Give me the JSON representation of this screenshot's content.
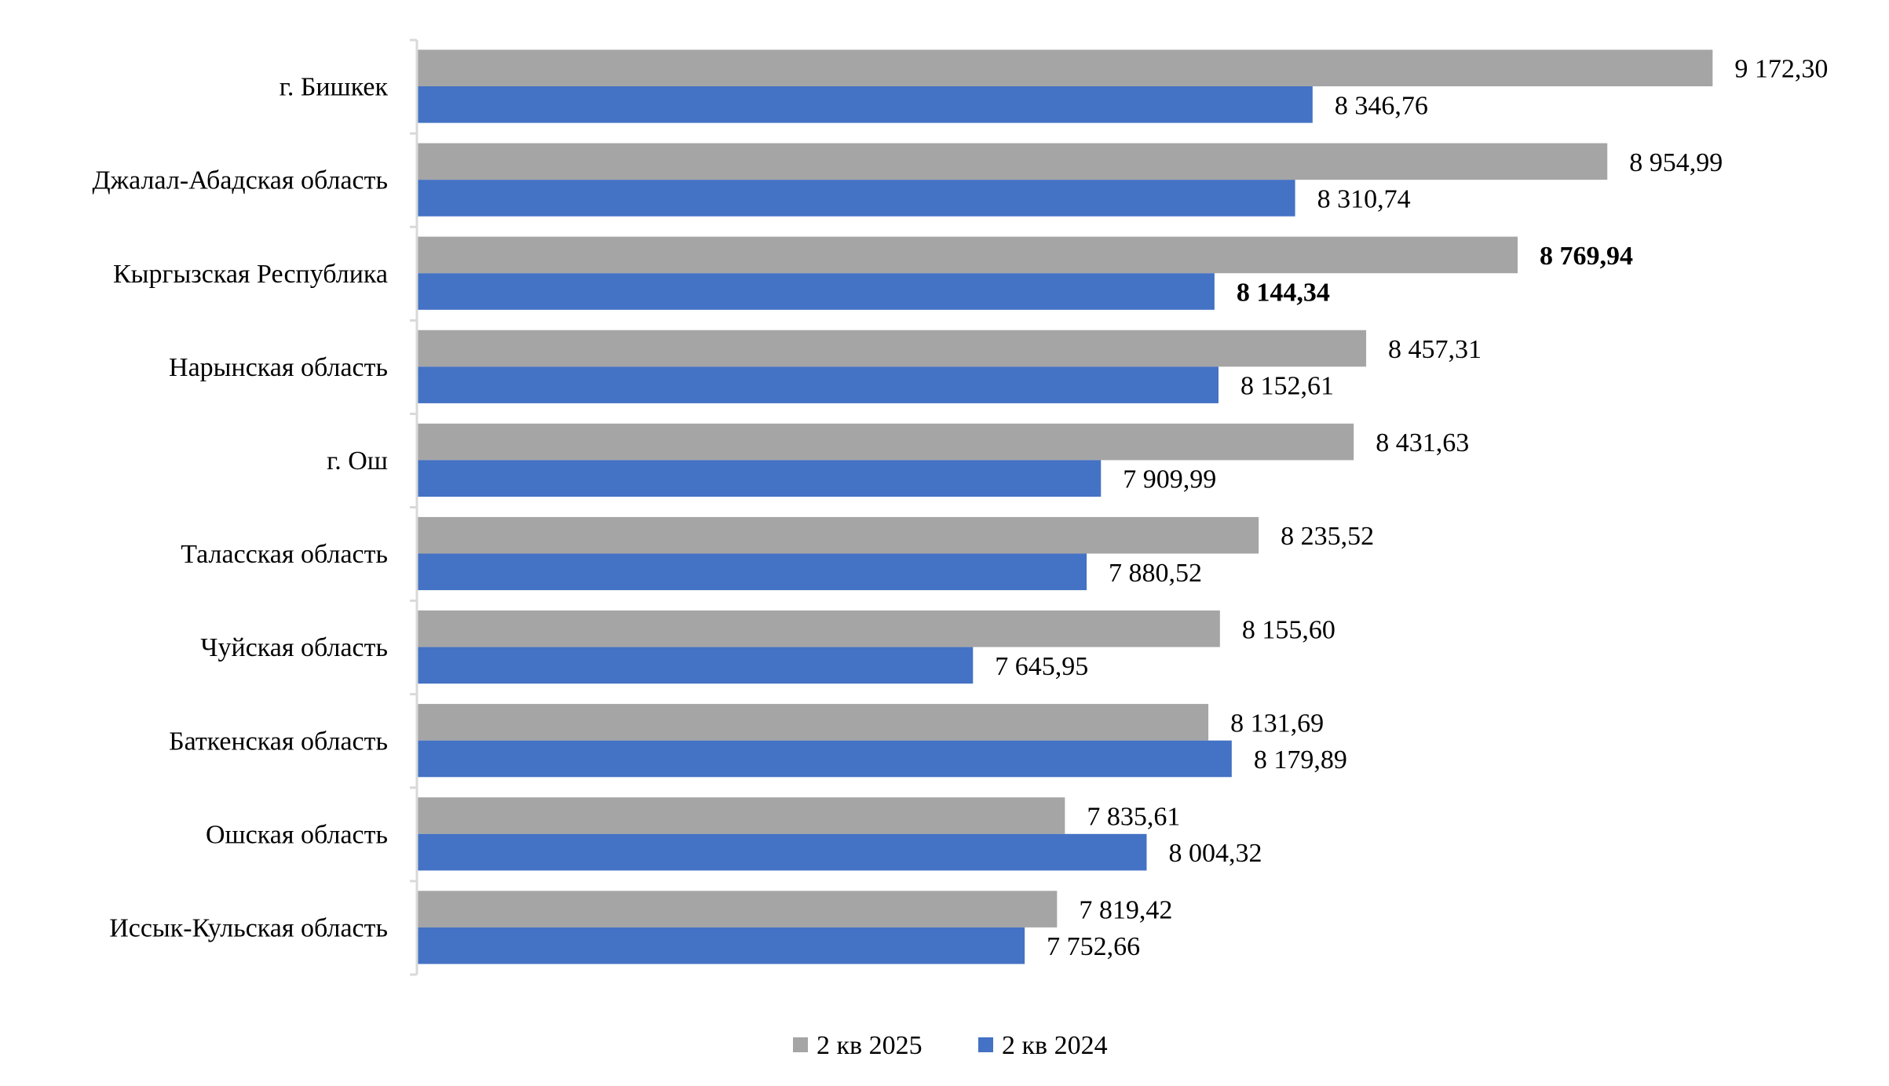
{
  "chart_data": {
    "type": "bar",
    "orientation": "horizontal",
    "title": "",
    "xlabel": "",
    "ylabel": "",
    "xlim": [
      6500,
      9500
    ],
    "grid": false,
    "legend_position": "bottom",
    "categories": [
      "г. Бишкек",
      "Джалал-Абадская область",
      "Кыргызская Республика",
      "Нарынская область",
      "г. Ош",
      "Таласская область",
      "Чуйская область",
      "Баткенская область",
      "Ошская область",
      "Иссык-Кульская область"
    ],
    "highlighted_category": "Кыргызская Республика",
    "series": [
      {
        "name": "2 кв 2025",
        "color": "#a5a5a5",
        "values": [
          9172.3,
          8954.99,
          8769.94,
          8457.31,
          8431.63,
          8235.52,
          8155.6,
          8131.69,
          7835.61,
          7819.42
        ],
        "labels": [
          "9 172,30",
          "8 954,99",
          "8 769,94",
          "8 457,31",
          "8 431,63",
          "8 235,52",
          "8 155,60",
          "8 131,69",
          "7 835,61",
          "7 819,42"
        ]
      },
      {
        "name": "2 кв 2024",
        "color": "#4472c4",
        "values": [
          8346.76,
          8310.74,
          8144.34,
          8152.61,
          7909.99,
          7880.52,
          7645.95,
          8179.89,
          8004.32,
          7752.66
        ],
        "labels": [
          "8 346,76",
          "8 310,74",
          "8 144,34",
          "8 152,61",
          "7 909,99",
          "7 880,52",
          "7 645,95",
          "8 179,89",
          "8 004,32",
          "7 752,66"
        ]
      }
    ]
  }
}
